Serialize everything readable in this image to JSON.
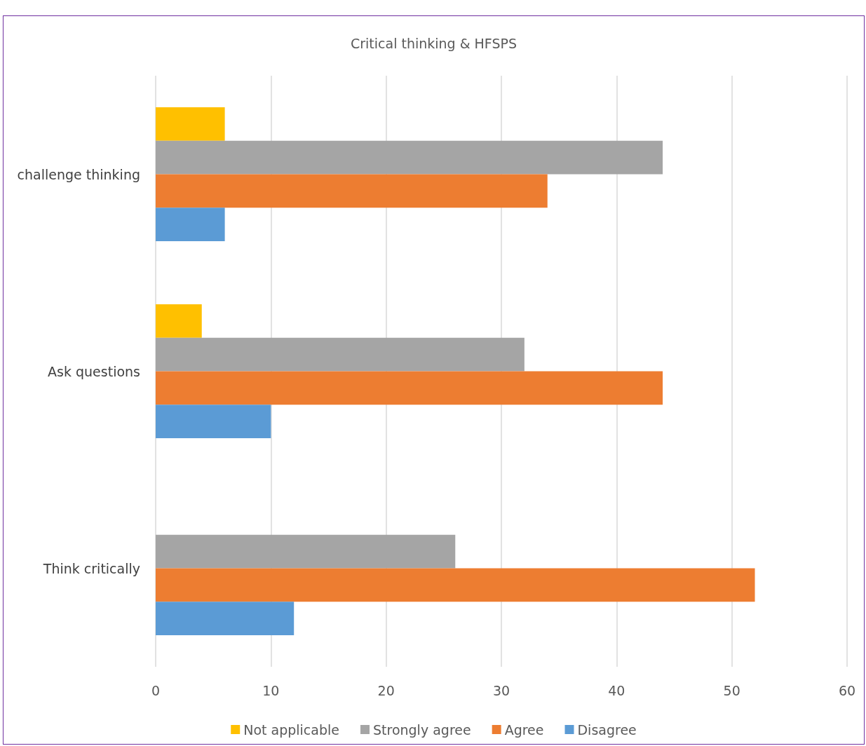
{
  "chart_data": {
    "type": "bar",
    "orientation": "horizontal",
    "title": "Critical thinking & HFSPS",
    "categories": [
      "challenge thinking",
      "Ask questions",
      "Think critically"
    ],
    "series": [
      {
        "name": "Not applicable",
        "color": "#ffc000",
        "values": [
          6,
          4,
          0
        ]
      },
      {
        "name": "Strongly agree",
        "color": "#a5a5a5",
        "values": [
          44,
          32,
          26
        ]
      },
      {
        "name": "Agree",
        "color": "#ed7d31",
        "values": [
          34,
          44,
          52
        ]
      },
      {
        "name": "Disagree",
        "color": "#5b9bd5",
        "values": [
          6,
          10,
          12
        ]
      }
    ],
    "xlim": [
      0,
      60
    ],
    "xticks": [
      0,
      10,
      20,
      30,
      40,
      50,
      60
    ],
    "grid": "x",
    "legend": "bottom"
  }
}
